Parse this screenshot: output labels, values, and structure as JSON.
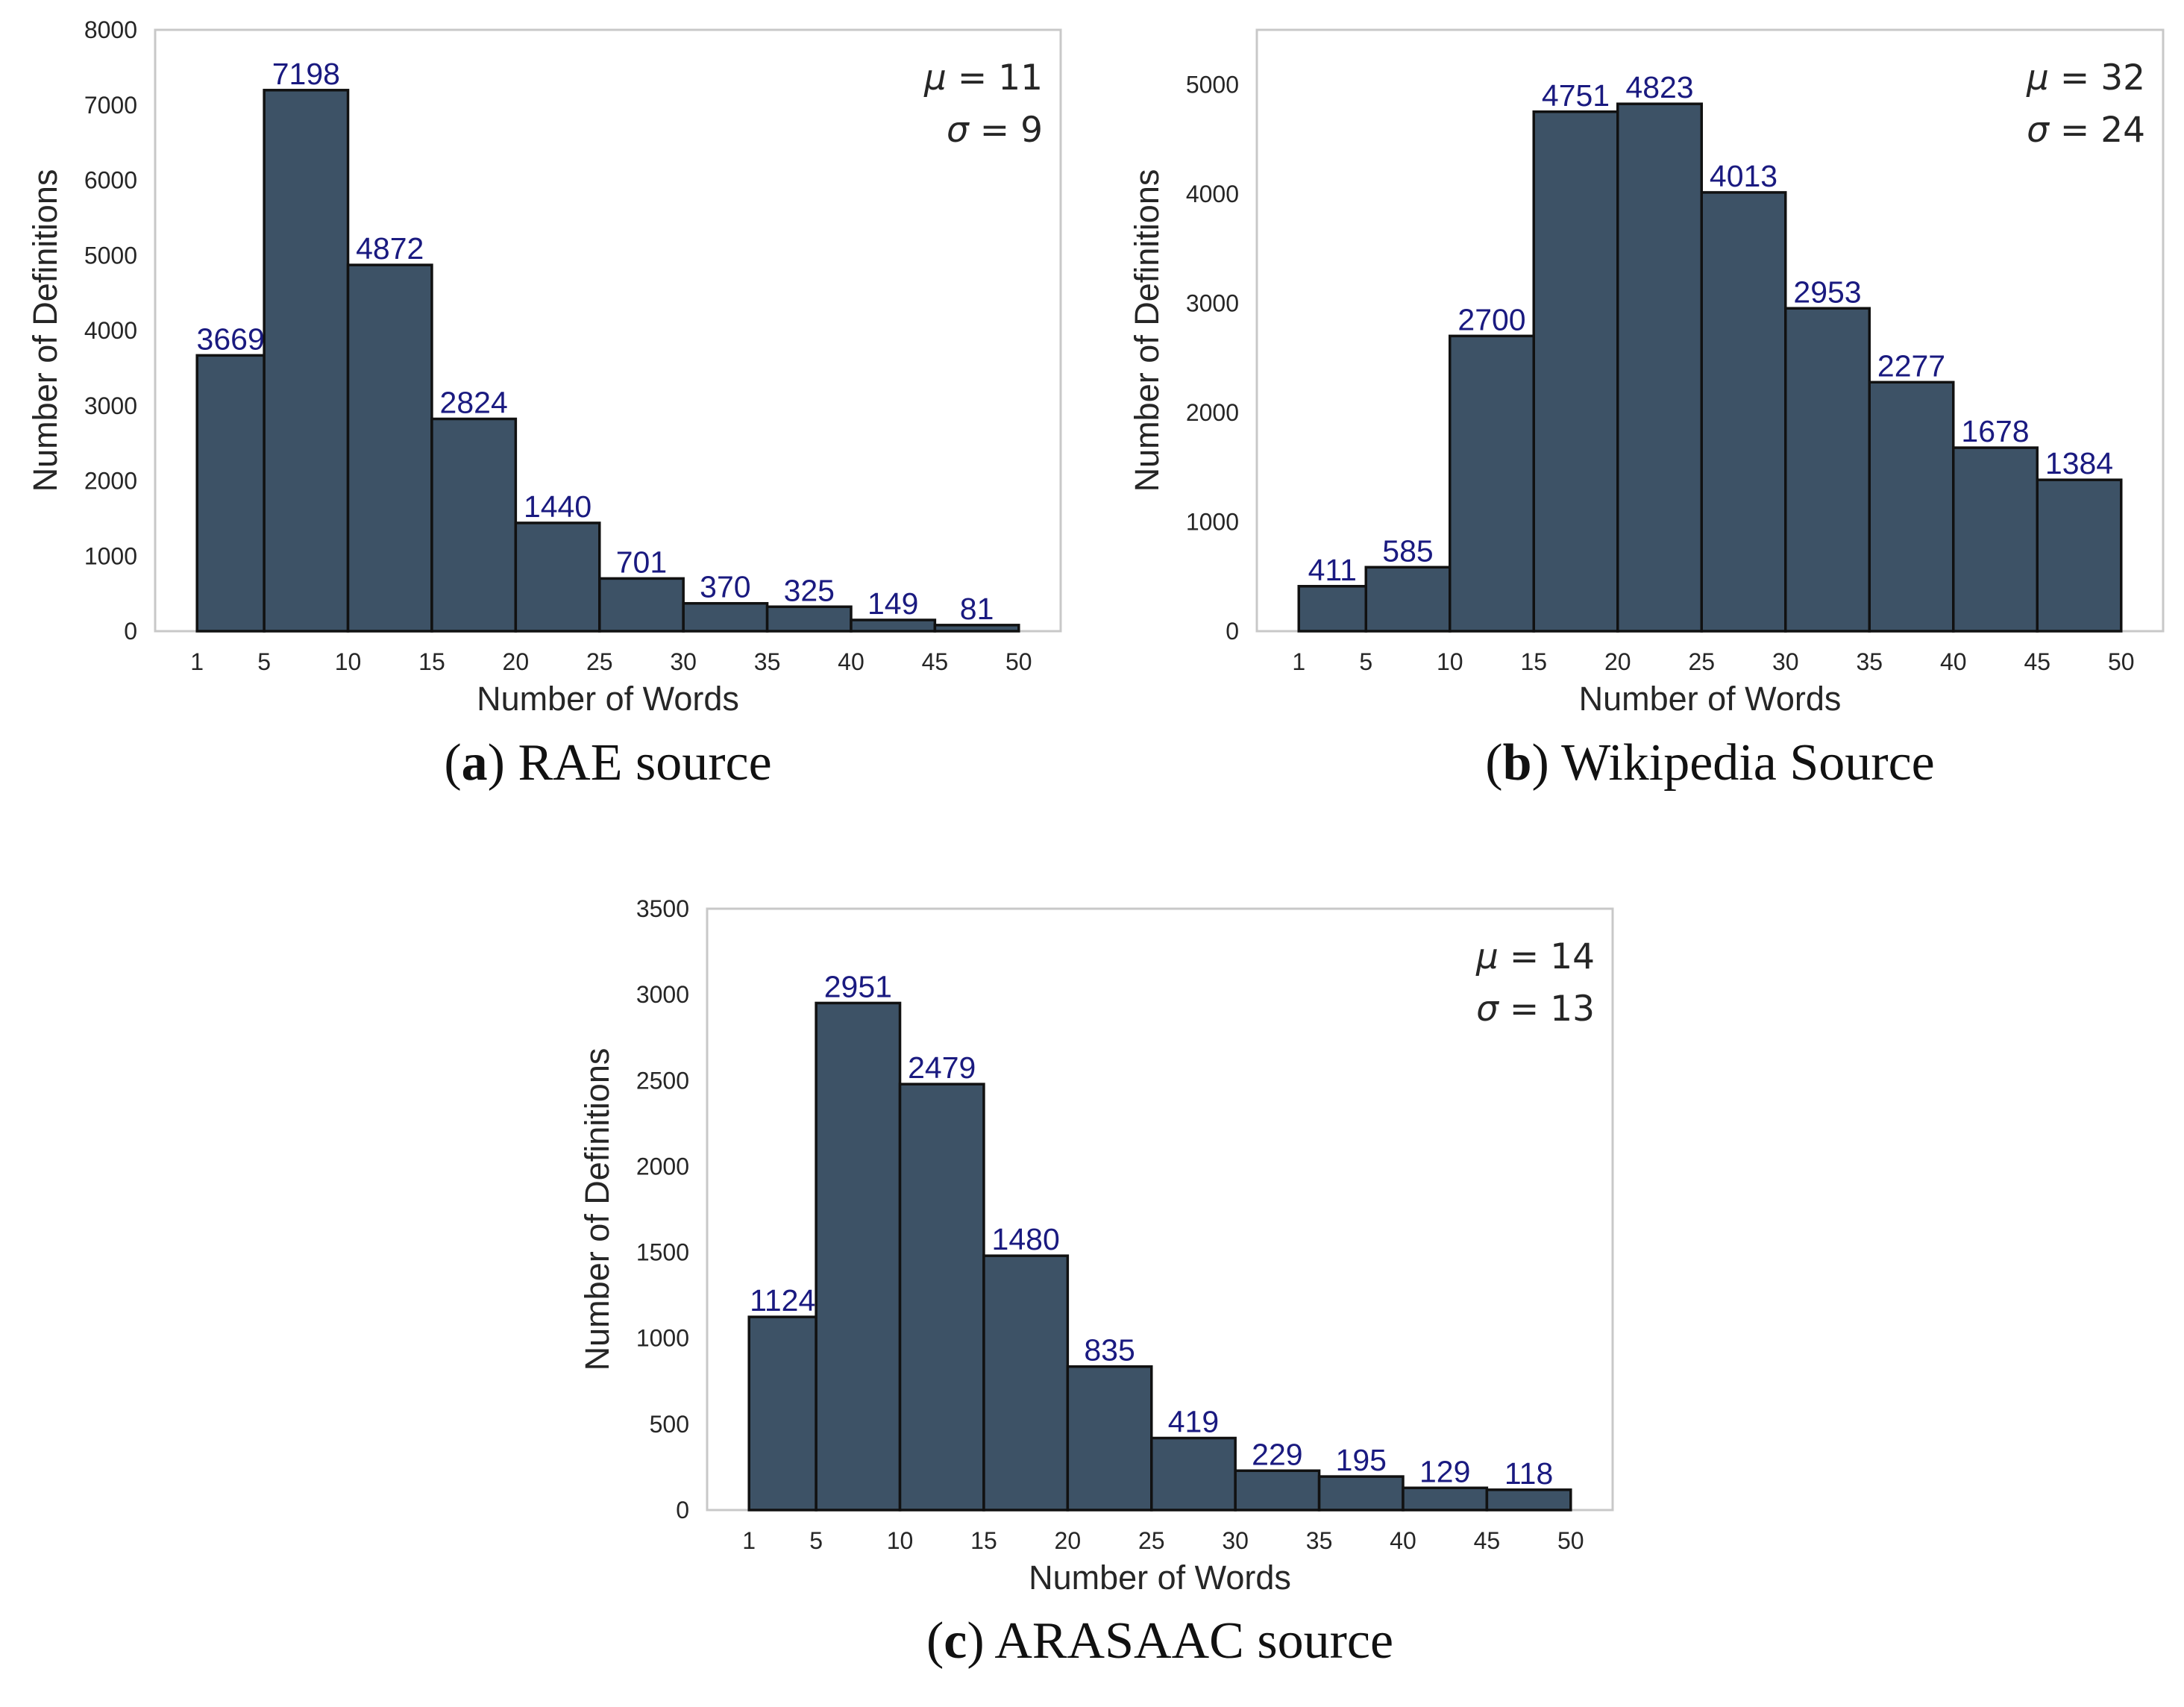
{
  "colors": {
    "bar_fill": "#3d5266",
    "bar_edge": "#111111",
    "bar_label": "#1a1a80",
    "frame": "#c8c8c8",
    "text": "#262626"
  },
  "chart_data": [
    {
      "type": "bar",
      "caption": {
        "letter": "a",
        "text": "RAE source"
      },
      "xlabel": "Number of Words",
      "ylabel": "Number of Definitions",
      "xticks": [
        1,
        5,
        10,
        15,
        20,
        25,
        30,
        35,
        40,
        45,
        50
      ],
      "bins": [
        [
          1,
          5
        ],
        [
          5,
          10
        ],
        [
          10,
          15
        ],
        [
          15,
          20
        ],
        [
          20,
          25
        ],
        [
          25,
          30
        ],
        [
          30,
          35
        ],
        [
          35,
          40
        ],
        [
          40,
          45
        ],
        [
          45,
          50
        ]
      ],
      "values": [
        3669,
        7198,
        4872,
        2824,
        1440,
        701,
        370,
        325,
        149,
        81
      ],
      "xlim": [
        -1.5,
        52.5
      ],
      "ylim": [
        0,
        8000
      ],
      "yticks": [
        0,
        1000,
        2000,
        3000,
        4000,
        5000,
        6000,
        7000,
        8000
      ],
      "stats": {
        "mu": "11",
        "sigma": "9"
      },
      "grid": false
    },
    {
      "type": "bar",
      "caption": {
        "letter": "b",
        "text": "Wikipedia Source"
      },
      "xlabel": "Number of Words",
      "ylabel": "Number of Definitions",
      "xticks": [
        1,
        5,
        10,
        15,
        20,
        25,
        30,
        35,
        40,
        45,
        50
      ],
      "bins": [
        [
          1,
          5
        ],
        [
          5,
          10
        ],
        [
          10,
          15
        ],
        [
          15,
          20
        ],
        [
          20,
          25
        ],
        [
          25,
          30
        ],
        [
          30,
          35
        ],
        [
          35,
          40
        ],
        [
          40,
          45
        ],
        [
          45,
          50
        ]
      ],
      "values": [
        411,
        585,
        2700,
        4751,
        4823,
        4013,
        2953,
        2277,
        1678,
        1384
      ],
      "xlim": [
        -1.5,
        52.5
      ],
      "ylim": [
        0,
        5500
      ],
      "yticks": [
        0,
        1000,
        2000,
        3000,
        4000,
        5000
      ],
      "stats": {
        "mu": "32",
        "sigma": "24"
      },
      "grid": false
    },
    {
      "type": "bar",
      "caption": {
        "letter": "c",
        "text": "ARASAAC source"
      },
      "xlabel": "Number of Words",
      "ylabel": "Number of Definitions",
      "xticks": [
        1,
        5,
        10,
        15,
        20,
        25,
        30,
        35,
        40,
        45,
        50
      ],
      "bins": [
        [
          1,
          5
        ],
        [
          5,
          10
        ],
        [
          10,
          15
        ],
        [
          15,
          20
        ],
        [
          20,
          25
        ],
        [
          25,
          30
        ],
        [
          30,
          35
        ],
        [
          35,
          40
        ],
        [
          40,
          45
        ],
        [
          45,
          50
        ]
      ],
      "values": [
        1124,
        2951,
        2479,
        1480,
        835,
        419,
        229,
        195,
        129,
        118
      ],
      "xlim": [
        -1.5,
        52.5
      ],
      "ylim": [
        0,
        3500
      ],
      "yticks": [
        0,
        500,
        1000,
        1500,
        2000,
        2500,
        3000,
        3500
      ],
      "stats": {
        "mu": "14",
        "sigma": "13"
      },
      "grid": false
    }
  ]
}
